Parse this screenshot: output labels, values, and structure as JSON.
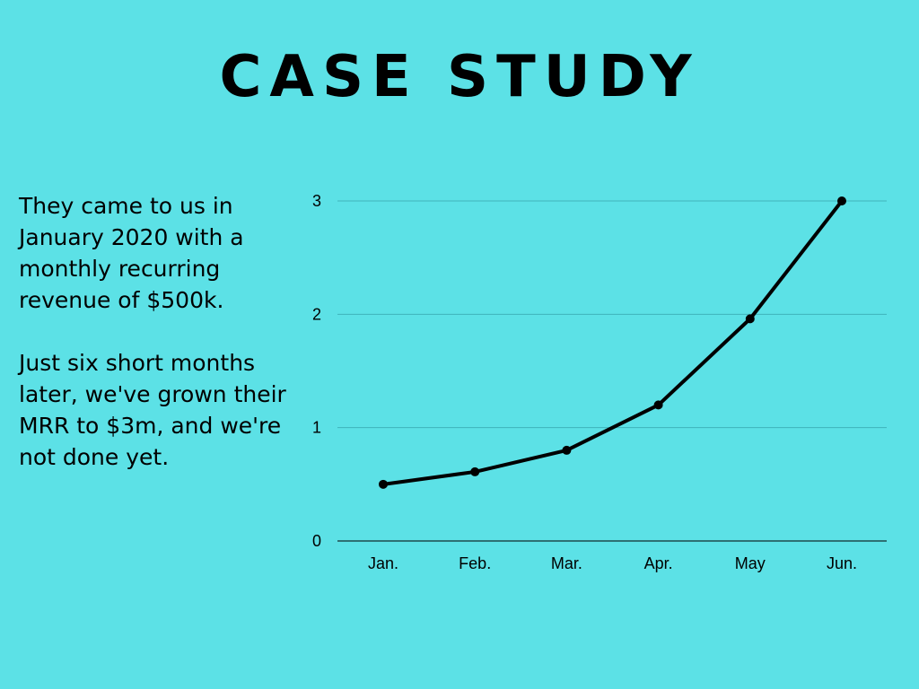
{
  "colors": {
    "background": "#5ce1e6",
    "text": "#000000",
    "gridline": "#3fb3bb",
    "line": "#000000"
  },
  "title": "CASE STUDY",
  "story": {
    "paragraph_1": "They came to us in January 2020 with a monthly recurring revenue of $500k.",
    "paragraph_2": "Just six short months later, we've grown their MRR to $3m, and we're not done yet."
  },
  "chart_data": {
    "type": "line",
    "title": "",
    "xlabel": "",
    "ylabel": "",
    "categories": [
      "Jan.",
      "Feb.",
      "Mar.",
      "Apr.",
      "May",
      "Jun."
    ],
    "series": [
      {
        "values": [
          0.5,
          0.61,
          0.8,
          1.2,
          1.96,
          3.0
        ]
      }
    ],
    "ylim": [
      0,
      3
    ],
    "yticks": [
      "0",
      "1",
      "2",
      "3"
    ],
    "grid": true,
    "markers": true,
    "legend": "none"
  }
}
